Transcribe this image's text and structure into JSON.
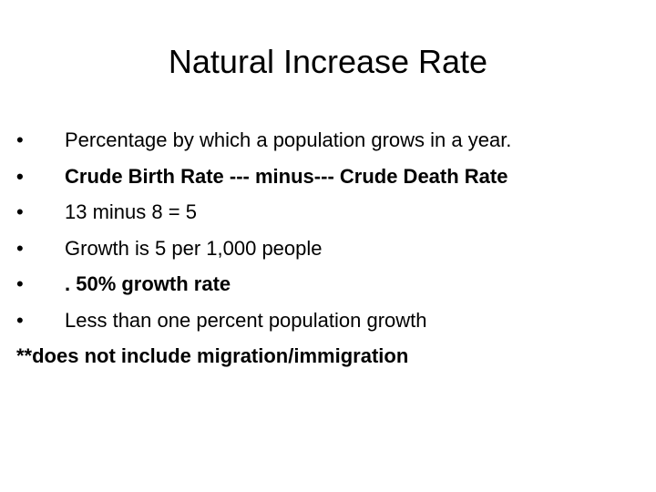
{
  "slide": {
    "title": "Natural Increase Rate",
    "bullet_char": "•",
    "bullets": [
      {
        "text": "Percentage by which a population grows in a year.",
        "bold": false
      },
      {
        "text": "Crude Birth Rate --- minus--- Crude Death Rate",
        "bold": true
      },
      {
        "text": "13 minus 8 = 5",
        "bold": false
      },
      {
        "text": "Growth is 5 per 1,000 people",
        "bold": false
      },
      {
        "text": ". 50% growth rate",
        "bold": true
      },
      {
        "text": "Less than one percent population growth",
        "bold": false
      }
    ],
    "note": "**does not include migration/immigration"
  }
}
